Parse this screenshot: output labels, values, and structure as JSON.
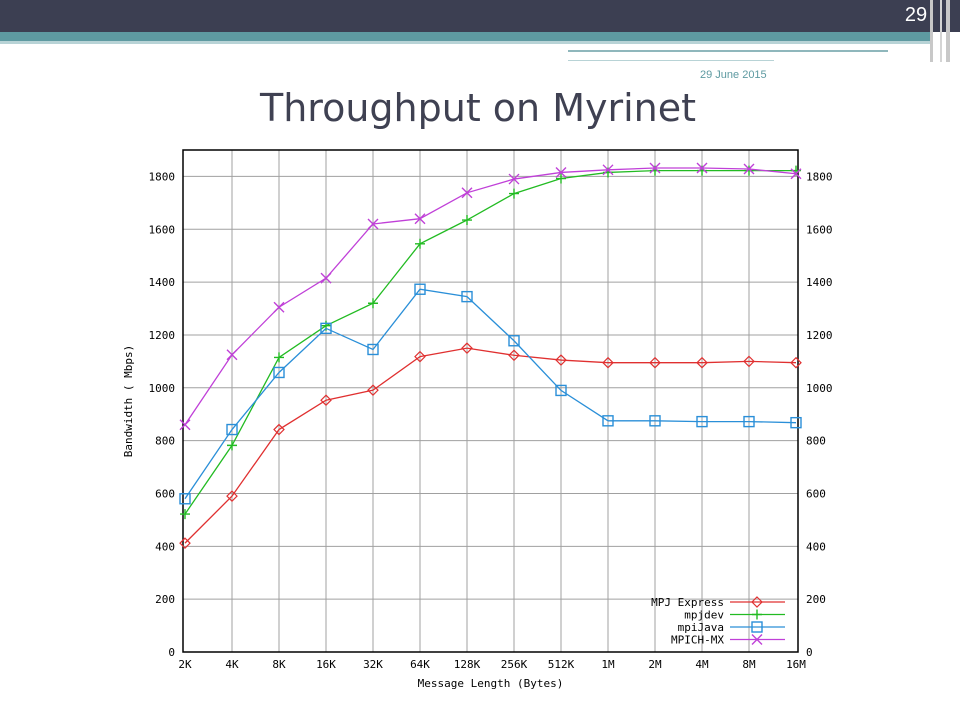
{
  "slide": {
    "number": "29",
    "date": "29 June 2015",
    "title": "Throughput on Myrinet"
  },
  "colors": {
    "header_bar": "#3c3f52",
    "accent": "#5e9aa1",
    "grid": "#a0a0a0"
  },
  "chart_data": {
    "type": "line",
    "title": "",
    "xlabel": "Message Length (Bytes)",
    "ylabel": "Bandwidth ( Mbps)",
    "categories": [
      "2K",
      "4K",
      "8K",
      "16K",
      "32K",
      "64K",
      "128K",
      "256K",
      "512K",
      "1M",
      "2M",
      "4M",
      "8M",
      "16M"
    ],
    "ylim": [
      0,
      1900
    ],
    "yticks": [
      0,
      200,
      400,
      600,
      800,
      1000,
      1200,
      1400,
      1600,
      1800
    ],
    "grid": true,
    "legend_position": "bottom-right",
    "series": [
      {
        "name": "MPJ Express",
        "color": "#e03030",
        "marker": "diamond",
        "values": [
          412,
          590,
          842,
          953,
          991,
          1118,
          1150,
          1123,
          1105,
          1095,
          1095,
          1095,
          1100,
          1095
        ]
      },
      {
        "name": "mpjdev",
        "color": "#22bb22",
        "marker": "plus",
        "values": [
          522,
          782,
          1115,
          1235,
          1320,
          1545,
          1635,
          1735,
          1792,
          1815,
          1822,
          1822,
          1822,
          1822
        ]
      },
      {
        "name": "mpiJava",
        "color": "#2a8fd8",
        "marker": "square",
        "values": [
          580,
          842,
          1058,
          1225,
          1145,
          1373,
          1345,
          1178,
          990,
          875,
          875,
          872,
          872,
          868
        ]
      },
      {
        "name": "MPICH-MX",
        "color": "#c040d8",
        "marker": "x",
        "values": [
          860,
          1125,
          1305,
          1415,
          1620,
          1640,
          1738,
          1790,
          1815,
          1825,
          1832,
          1832,
          1828,
          1810
        ]
      }
    ]
  }
}
